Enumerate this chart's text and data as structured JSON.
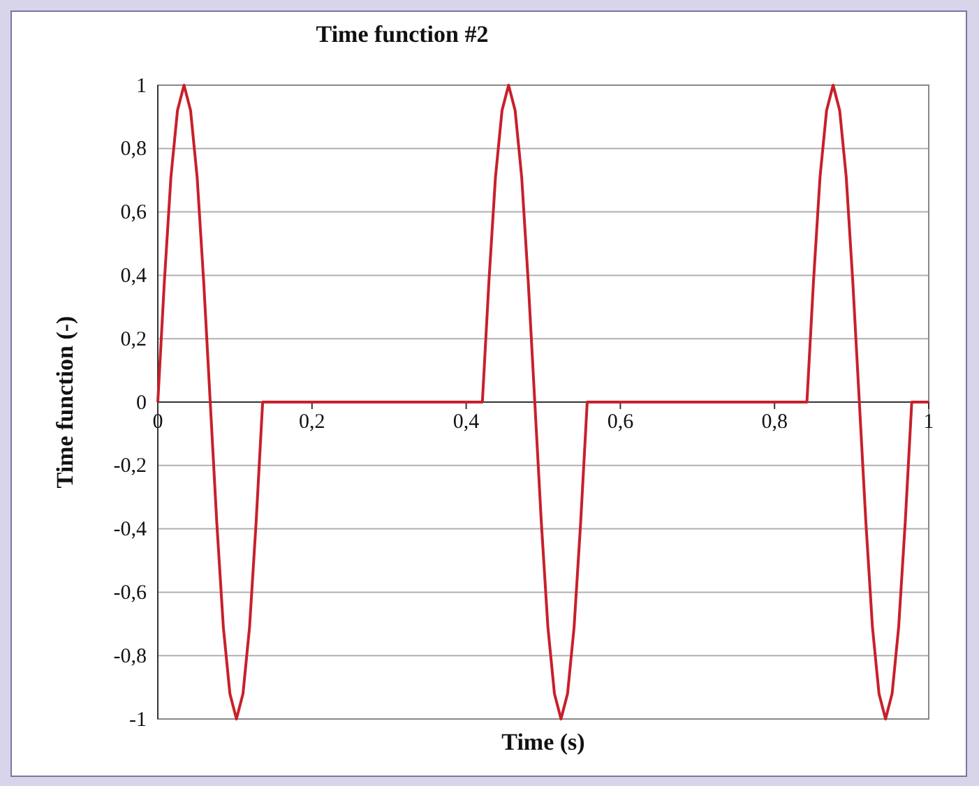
{
  "chart_data": {
    "type": "line",
    "title": "Time function #2",
    "xlabel": "Time (s)",
    "ylabel": "Time function (-)",
    "series": [
      {
        "color": "#c8202a",
        "x": [
          0,
          0.0085,
          0.017,
          0.0255,
          0.034,
          0.0425,
          0.051,
          0.0595,
          0.068,
          0.0765,
          0.085,
          0.0935,
          0.102,
          0.1105,
          0.119,
          0.1275,
          0.136,
          0.421,
          0.4295,
          0.438,
          0.4465,
          0.455,
          0.4635,
          0.472,
          0.4805,
          0.489,
          0.4975,
          0.506,
          0.5145,
          0.523,
          0.5315,
          0.54,
          0.5485,
          0.557,
          0.842,
          0.8505,
          0.859,
          0.8675,
          0.876,
          0.8845,
          0.893,
          0.9015,
          0.91,
          0.9185,
          0.927,
          0.9355,
          0.944,
          0.9525,
          0.961,
          0.9695,
          0.978,
          1
        ],
        "values": [
          0,
          0.38,
          0.71,
          0.92,
          1,
          0.92,
          0.71,
          0.38,
          0,
          -0.38,
          -0.71,
          -0.92,
          -1,
          -0.92,
          -0.71,
          -0.38,
          0,
          0,
          0.38,
          0.71,
          0.92,
          1,
          0.92,
          0.71,
          0.38,
          0,
          -0.38,
          -0.71,
          -0.92,
          -1,
          -0.92,
          -0.71,
          -0.38,
          0,
          0,
          0.38,
          0.71,
          0.92,
          1,
          0.92,
          0.71,
          0.38,
          0,
          -0.38,
          -0.71,
          -0.92,
          -1,
          -0.92,
          -0.71,
          -0.38,
          0,
          0
        ]
      }
    ],
    "xlim": [
      0,
      1
    ],
    "xticks": [
      0,
      {
        "value": 0.2,
        "label": "0,2"
      },
      {
        "value": 0.4,
        "label": "0,4"
      },
      {
        "value": 0.6,
        "label": "0,6"
      },
      {
        "value": 0.8,
        "label": "0,8"
      },
      1
    ],
    "ylim": [
      -1,
      1
    ],
    "yticks": [
      -1,
      {
        "value": -0.8,
        "label": "-0,8"
      },
      {
        "value": -0.6,
        "label": "-0,6"
      },
      {
        "value": -0.4,
        "label": "-0,4"
      },
      {
        "value": -0.2,
        "label": "-0,2"
      },
      0,
      {
        "value": 0.2,
        "label": "0,2"
      },
      {
        "value": 0.4,
        "label": "0,4"
      },
      {
        "value": 0.6,
        "label": "0,6"
      },
      {
        "value": 0.8,
        "label": "0,8"
      },
      1
    ],
    "grid": "y",
    "marker": "none",
    "line_style": "solid"
  }
}
